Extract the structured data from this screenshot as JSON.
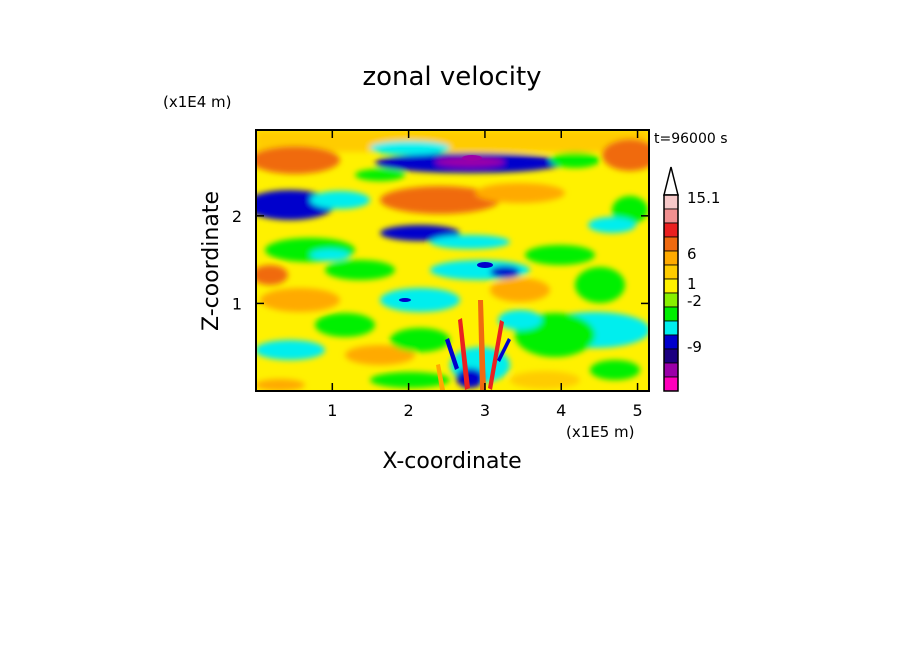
{
  "chart_data": {
    "type": "heatmap",
    "title": "zonal velocity",
    "xlabel": "X-coordinate",
    "ylabel": "Z-coordinate",
    "x_unit": "(x1E5 m)",
    "y_unit": "(x1E4 m)",
    "time_label": "t=96000 s",
    "xlim": [
      0,
      5.15
    ],
    "ylim": [
      0,
      2.98
    ],
    "x_ticks": [
      "1",
      "2",
      "3",
      "4",
      "5"
    ],
    "x_tick_values": [
      1,
      2,
      3,
      4,
      5
    ],
    "y_ticks": [
      "1",
      "2"
    ],
    "y_tick_values": [
      1,
      2
    ],
    "colorbar": {
      "levels_top_to_bottom": [
        "#f6c8c8",
        "#f19090",
        "#ea2020",
        "#f06a10",
        "#ffaa00",
        "#ffcc00",
        "#fff100",
        "#88f000",
        "#00f000",
        "#00eeee",
        "#0000cc",
        "#1c0080",
        "#9b00a8",
        "#ff00bb"
      ],
      "labels": [
        {
          "text": "15.1",
          "value": 15.1
        },
        {
          "text": "6",
          "value": 6
        },
        {
          "text": "1",
          "value": 1
        },
        {
          "text": "-2",
          "value": -2
        },
        {
          "text": "-9",
          "value": -9
        }
      ],
      "extend": "max"
    },
    "field_note": "zonal velocity field, approximate bands",
    "bands": [
      {
        "z_range": [
          2.5,
          2.98
        ],
        "dominant": "orange/yellow",
        "notes": "orange at left x<0.7 and right x>4.8; dark blue band x 2.1-3.8 near z 2.6"
      },
      {
        "z_range": [
          2.0,
          2.5
        ],
        "dominant": "orange/yellow",
        "notes": "dark blue band at left x 0-1.2 near z 2.1-2.3; orange x 1.8-3.6"
      },
      {
        "z_range": [
          1.3,
          2.0
        ],
        "dominant": "yellow/green/cyan",
        "notes": "cyan and blue streaks x 1.5-3.5"
      },
      {
        "z_range": [
          0.6,
          1.3
        ],
        "dominant": "yellow/green/cyan",
        "notes": "green x 3.6-4.6, cyan x 4.3-5.1"
      },
      {
        "z_range": [
          0,
          0.6
        ],
        "dominant": "yellow/cyan",
        "notes": "orange/red spikes near x 2.6-3.1"
      }
    ]
  }
}
